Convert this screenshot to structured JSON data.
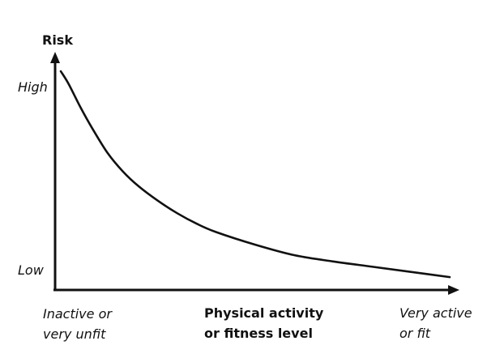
{
  "chart_data": {
    "type": "line",
    "title": "",
    "ylabel": "Risk",
    "xlabel_lines": [
      "Physical activity",
      "or fitness level"
    ],
    "y_tick_labels": [
      "High",
      "Low"
    ],
    "x_end_labels": {
      "left": [
        "Inactive or",
        "very unfit"
      ],
      "right": [
        "Very active",
        "or fit"
      ]
    },
    "xlim": [
      0,
      100
    ],
    "ylim": [
      0,
      100
    ],
    "grid": false,
    "legend": "none",
    "colors": {
      "line": "#111111",
      "axis": "#111111"
    },
    "series": [
      {
        "x": [
          0,
          2,
          5,
          8,
          12,
          16,
          20,
          25,
          30,
          35,
          40,
          50,
          60,
          70,
          80,
          90,
          100
        ],
        "y": [
          100,
          94,
          83,
          73,
          61,
          52,
          45,
          38,
          32,
          27,
          23,
          17,
          12,
          9,
          6.5,
          4,
          1.5
        ]
      }
    ]
  }
}
